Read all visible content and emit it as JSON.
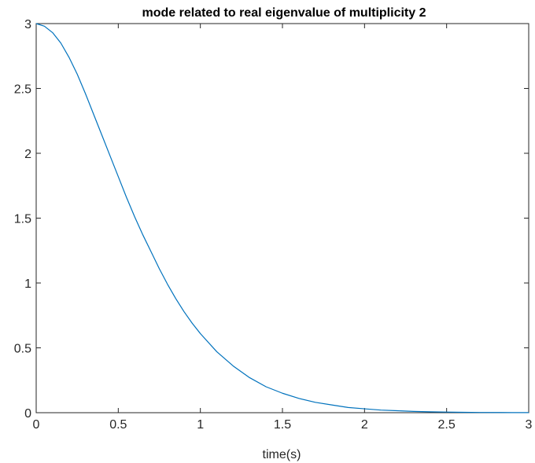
{
  "chart_data": {
    "type": "line",
    "title": "mode related to real eigenvalue of multiplicity 2",
    "xlabel": "time(s)",
    "ylabel": "",
    "xlim": [
      0,
      3
    ],
    "ylim": [
      0,
      3
    ],
    "xticks": [
      0,
      0.5,
      1,
      1.5,
      2,
      2.5,
      3
    ],
    "xtick_labels": [
      "0",
      "0.5",
      "1",
      "1.5",
      "2",
      "2.5",
      "3"
    ],
    "yticks": [
      0,
      0.5,
      1,
      1.5,
      2,
      2.5,
      3
    ],
    "ytick_labels": [
      "0",
      "0.5",
      "1",
      "1.5",
      "2",
      "2.5",
      "3"
    ],
    "grid": false,
    "legend": "none",
    "series": [
      {
        "color": "#0072BD",
        "x": [
          0,
          0.05,
          0.1,
          0.15,
          0.2,
          0.25,
          0.3,
          0.35,
          0.4,
          0.45,
          0.5,
          0.55,
          0.6,
          0.65,
          0.7,
          0.75,
          0.8,
          0.85,
          0.9,
          0.95,
          1.0,
          1.1,
          1.2,
          1.3,
          1.4,
          1.5,
          1.6,
          1.7,
          1.8,
          1.9,
          2.0,
          2.1,
          2.2,
          2.3,
          2.4,
          2.5,
          2.6,
          2.7,
          2.8,
          2.9,
          3.0
        ],
        "y": [
          3.0,
          2.98,
          2.93,
          2.85,
          2.74,
          2.61,
          2.46,
          2.3,
          2.14,
          1.98,
          1.82,
          1.66,
          1.51,
          1.37,
          1.24,
          1.11,
          0.99,
          0.88,
          0.78,
          0.69,
          0.61,
          0.47,
          0.36,
          0.27,
          0.2,
          0.15,
          0.11,
          0.08,
          0.06,
          0.04,
          0.03,
          0.02,
          0.015,
          0.01,
          0.007,
          0.005,
          0.003,
          0.002,
          0.0015,
          0.001,
          0.0007
        ]
      }
    ]
  }
}
